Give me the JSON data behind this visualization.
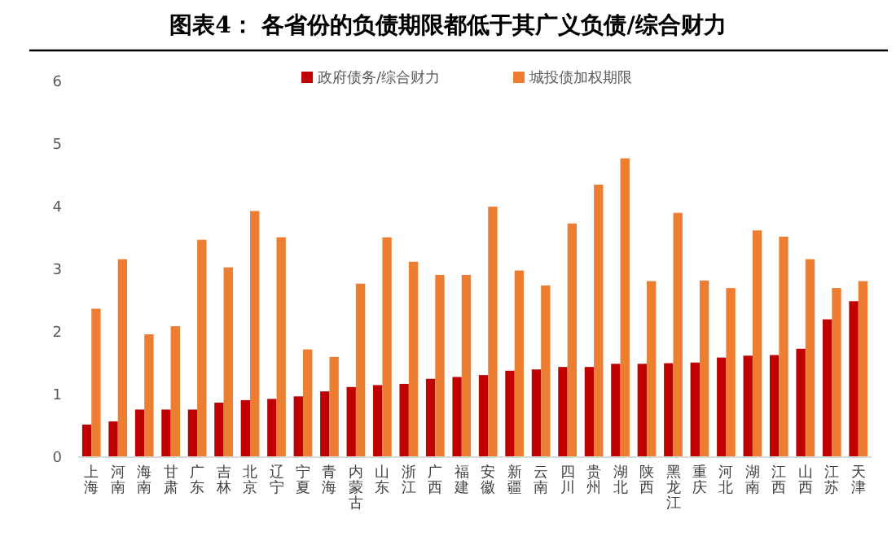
{
  "chart_data": {
    "type": "bar",
    "title": "图表4：  各省份的负债期限都低于其广义负债/综合财力",
    "categories": [
      "上海",
      "河南",
      "海南",
      "甘肃",
      "广东",
      "吉林",
      "北京",
      "辽宁",
      "宁夏",
      "青海",
      "内蒙古",
      "山东",
      "浙江",
      "广西",
      "福建",
      "安徽",
      "新疆",
      "云南",
      "四川",
      "贵州",
      "湖北",
      "陕西",
      "黑龙江",
      "重庆",
      "河北",
      "湖南",
      "江西",
      "山西",
      "江苏",
      "天津"
    ],
    "series": [
      {
        "name": "政府债务/综合财力",
        "color": "#c00000",
        "values": [
          0.52,
          0.57,
          0.76,
          0.76,
          0.76,
          0.87,
          0.91,
          0.93,
          0.97,
          1.05,
          1.12,
          1.15,
          1.17,
          1.25,
          1.28,
          1.31,
          1.38,
          1.4,
          1.44,
          1.44,
          1.49,
          1.49,
          1.5,
          1.51,
          1.59,
          1.62,
          1.63,
          1.73,
          2.2,
          2.49
        ]
      },
      {
        "name": "城投债加权期限",
        "color": "#ed7d31",
        "values": [
          2.37,
          3.16,
          1.96,
          2.09,
          3.47,
          3.03,
          3.93,
          3.51,
          1.72,
          1.6,
          2.77,
          3.51,
          3.12,
          2.91,
          2.91,
          4.0,
          2.98,
          2.74,
          3.73,
          4.35,
          4.77,
          2.81,
          3.9,
          2.82,
          2.7,
          3.62,
          3.52,
          3.16,
          2.7,
          2.81
        ]
      }
    ],
    "ylim": [
      0,
      6
    ],
    "yticks": [
      0,
      1,
      2,
      3,
      4,
      5,
      6
    ],
    "grid": false,
    "legend": "top right"
  }
}
